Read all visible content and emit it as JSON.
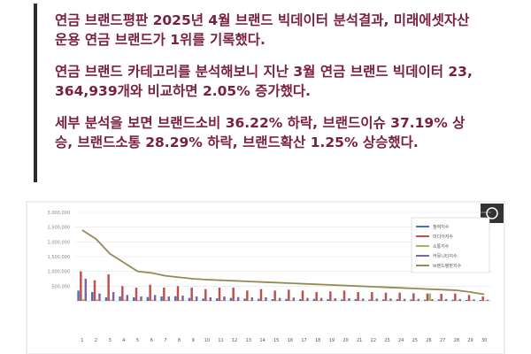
{
  "article": {
    "paragraphs": [
      "연금 브랜드평판 2025년 4월 브랜드 빅데이터 분석결과, 미래에셋자산운용 연금 브랜드가 1위를 기록했다.",
      "연금 브랜드 카테고리를 분석해보니 지난 3월 연금 브랜드 빅데이터 23,364,939개와 비교하면 2.05% 증가했다.",
      "세부 분석을 보면 브랜드소비 36.22% 하락, 브랜드이슈 37.19% 상승, 브랜드소통 28.29% 하락, 브랜드확산 1.25% 상승했다."
    ]
  },
  "chart_data": {
    "type": "bar-line",
    "categories": [
      "1",
      "2",
      "3",
      "4",
      "5",
      "6",
      "7",
      "8",
      "9",
      "10",
      "11",
      "12",
      "13",
      "14",
      "15",
      "16",
      "17",
      "18",
      "19",
      "20",
      "21",
      "22",
      "23",
      "24",
      "25",
      "26",
      "27",
      "28",
      "29",
      "30"
    ],
    "series": [
      {
        "name": "참여지수",
        "color": "#4472c4",
        "values": [
          350000,
          300000,
          120000,
          150000,
          120000,
          130000,
          150000,
          160000,
          100000,
          80000,
          90000,
          100000,
          80000,
          70000,
          60000,
          70000,
          60000,
          70000,
          60000,
          50000,
          60000,
          50000,
          50000,
          60000,
          50000,
          40000,
          50000,
          40000,
          30000,
          30000
        ]
      },
      {
        "name": "미디어지수",
        "color": "#c0504d",
        "values": [
          1000000,
          700000,
          900000,
          500000,
          450000,
          550000,
          450000,
          500000,
          450000,
          400000,
          450000,
          450000,
          350000,
          400000,
          350000,
          380000,
          350000,
          300000,
          320000,
          350000,
          300000,
          300000,
          280000,
          280000,
          260000,
          250000,
          240000,
          250000,
          200000,
          150000
        ]
      },
      {
        "name": "소통지수",
        "color": "#9bbb59",
        "values": [
          60000,
          50000,
          40000,
          40000,
          30000,
          40000,
          30000,
          30000,
          30000,
          20000,
          30000,
          20000,
          20000,
          20000,
          20000,
          20000,
          20000,
          20000,
          20000,
          20000,
          20000,
          20000,
          20000,
          20000,
          20000,
          250000,
          20000,
          20000,
          20000,
          20000
        ]
      },
      {
        "name": "커뮤니티지수",
        "color": "#8064a2",
        "values": [
          750000,
          250000,
          300000,
          200000,
          150000,
          200000,
          150000,
          180000,
          150000,
          120000,
          150000,
          130000,
          120000,
          120000,
          100000,
          110000,
          100000,
          100000,
          90000,
          90000,
          80000,
          80000,
          80000,
          70000,
          70000,
          60000,
          60000,
          60000,
          50000,
          40000
        ]
      },
      {
        "name": "브랜드평판지수",
        "color": "#948a54",
        "line": true,
        "values": [
          2400000,
          2100000,
          1600000,
          1300000,
          1000000,
          950000,
          850000,
          800000,
          750000,
          720000,
          700000,
          680000,
          660000,
          640000,
          620000,
          600000,
          580000,
          560000,
          540000,
          520000,
          500000,
          480000,
          460000,
          440000,
          420000,
          400000,
          380000,
          360000,
          300000,
          220000
        ]
      }
    ],
    "ylim": [
      0,
      3000000
    ],
    "yticks": [
      {
        "value": 500000,
        "label": "500,000"
      },
      {
        "value": 1000000,
        "label": "1,000,000"
      },
      {
        "value": 1500000,
        "label": "1,500,000"
      },
      {
        "value": 2000000,
        "label": "2,000,000"
      },
      {
        "value": 2500000,
        "label": "2,500,000"
      },
      {
        "value": 3000000,
        "label": "3,000,000"
      }
    ],
    "grid": true,
    "legend": "top-right"
  }
}
